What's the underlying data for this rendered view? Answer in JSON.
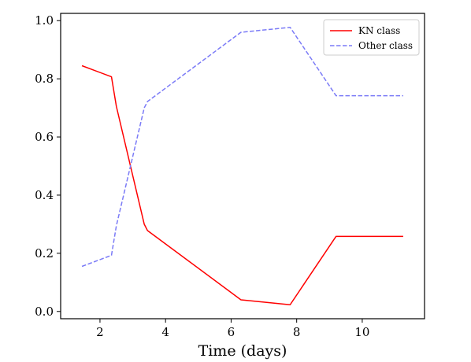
{
  "chart_data": {
    "type": "line",
    "title": "",
    "xlabel": "Time (days)",
    "ylabel": "",
    "xlim": [
      0.8,
      11.9
    ],
    "ylim": [
      -0.025,
      1.025
    ],
    "xticks": [
      2,
      4,
      6,
      8,
      10
    ],
    "xtick_labels": [
      "2",
      "4",
      "6",
      "8",
      "10"
    ],
    "yticks": [
      0.0,
      0.2,
      0.4,
      0.6,
      0.8,
      1.0
    ],
    "ytick_labels": [
      "0.0",
      "0.2",
      "0.4",
      "0.6",
      "0.8",
      "1.0"
    ],
    "grid": false,
    "legend_position": "top-right",
    "series": [
      {
        "name": "KN class",
        "color": "#ff0000",
        "style": "solid",
        "x": [
          1.45,
          2.35,
          2.5,
          3.35,
          3.45,
          6.3,
          7.8,
          9.2,
          11.25
        ],
        "y": [
          0.845,
          0.807,
          0.705,
          0.3,
          0.278,
          0.04,
          0.023,
          0.258,
          0.258
        ]
      },
      {
        "name": "Other class",
        "color": "#7b7bf7",
        "style": "dashed",
        "x": [
          1.45,
          2.35,
          2.5,
          3.35,
          3.45,
          6.3,
          7.8,
          9.2,
          11.25
        ],
        "y": [
          0.155,
          0.193,
          0.295,
          0.7,
          0.722,
          0.96,
          0.977,
          0.742,
          0.742
        ]
      }
    ]
  }
}
